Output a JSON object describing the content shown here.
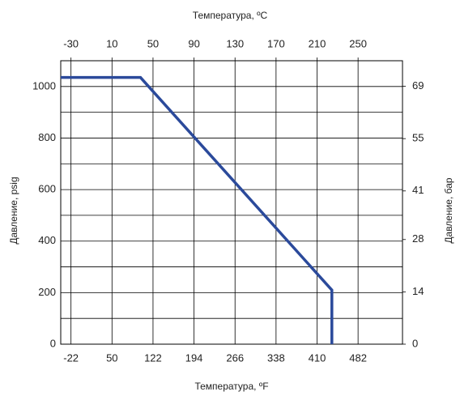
{
  "chart_data": {
    "type": "line",
    "x_label": "Температура, ºF",
    "x2_label": "Температура, ºC",
    "y_label": "Давление, psig",
    "y2_label": "Давление, бар",
    "x": [
      -40,
      100,
      436,
      436
    ],
    "series": [
      {
        "name": "psig",
        "color": "#2b4a9b",
        "values": [
          1035,
          1035,
          210,
          0
        ]
      }
    ],
    "xlim": [
      -40,
      560
    ],
    "xticks": [
      -22,
      50,
      122,
      194,
      266,
      338,
      410,
      482
    ],
    "x2lim": [
      -40,
      293.33
    ],
    "x2ticks": [
      -30,
      10,
      50,
      90,
      130,
      170,
      210,
      250
    ],
    "ylim": [
      0,
      1100
    ],
    "yticks": [
      0,
      200,
      400,
      600,
      800,
      1000
    ],
    "y_minor_grid": [
      100,
      300,
      500,
      700,
      900
    ],
    "y2lim": [
      0,
      75.84
    ],
    "y2ticks": [
      0,
      14,
      28,
      41,
      55,
      69
    ],
    "grid": true
  }
}
